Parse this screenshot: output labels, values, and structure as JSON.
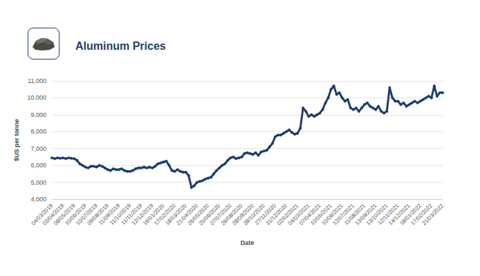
{
  "chart_data": {
    "type": "line",
    "title": "Aluminum Prices",
    "x_label": "Date",
    "y_label": "$US per tonne",
    "categories": [
      "04/03/2019",
      null,
      null,
      null,
      "03/04/2019",
      null,
      null,
      null,
      "08/05/2019",
      null,
      null,
      null,
      "10/06/2019",
      null,
      null,
      null,
      "10/07/2019",
      null,
      null,
      null,
      "09/08/2019",
      null,
      null,
      null,
      "11/09/2019",
      null,
      null,
      null,
      "11/10/2019",
      null,
      null,
      null,
      "11/11/2019",
      null,
      null,
      null,
      "12/12/2019",
      null,
      null,
      null,
      "16/01/2020",
      null,
      null,
      null,
      "17/02/2020",
      null,
      null,
      null,
      "18/03/2020",
      null,
      null,
      null,
      "21/04/2020",
      null,
      null,
      null,
      "26/05/2020",
      null,
      null,
      null,
      "25/06/2020",
      null,
      null,
      null,
      "27/07/2020",
      null,
      null,
      null,
      "26/08/2020",
      null,
      null,
      null,
      "28/09/2020",
      null,
      null,
      null,
      "28/10/2020",
      null,
      null,
      null,
      "27/11/2020",
      null,
      null,
      null,
      "31/12/2020",
      null,
      null,
      null,
      "02/02/2021",
      null,
      null,
      null,
      "04/03/2021",
      null,
      null,
      null,
      "07/04/2021",
      null,
      null,
      null,
      "10/05/2021",
      null,
      null,
      null,
      "10/06/2021",
      null,
      null,
      null,
      "12/07/2021",
      null,
      null,
      null,
      "11/08/2021",
      null,
      null,
      null,
      "13/09/2021",
      null,
      null,
      null,
      "13/10/2021",
      null,
      null,
      null,
      "12/11/2021",
      null,
      null,
      null,
      "14/12/2021",
      null,
      null,
      null,
      "18/01/2022",
      null,
      null,
      null,
      "17/02/2022",
      null,
      null,
      null,
      "21/03/2022"
    ],
    "values": [
      6450,
      6400,
      6450,
      6420,
      6450,
      6400,
      6450,
      6420,
      6400,
      6300,
      6100,
      6000,
      5900,
      5850,
      5950,
      5950,
      5900,
      6000,
      5950,
      5850,
      5750,
      5700,
      5800,
      5750,
      5750,
      5800,
      5700,
      5650,
      5650,
      5700,
      5800,
      5850,
      5850,
      5900,
      5850,
      5900,
      5850,
      5950,
      6100,
      6150,
      6200,
      6250,
      6000,
      5700,
      5650,
      5750,
      5650,
      5600,
      5600,
      5400,
      4700,
      4800,
      5000,
      5050,
      5100,
      5200,
      5250,
      5300,
      5500,
      5700,
      5850,
      6000,
      6100,
      6300,
      6450,
      6500,
      6400,
      6450,
      6500,
      6700,
      6750,
      6700,
      6650,
      6750,
      6600,
      6800,
      6850,
      6900,
      7100,
      7300,
      7700,
      7800,
      7800,
      7900,
      8000,
      8100,
      7950,
      7850,
      7900,
      8200,
      9400,
      9200,
      8900,
      9000,
      8900,
      9000,
      9100,
      9300,
      9700,
      10000,
      10500,
      10700,
      10200,
      10300,
      10000,
      9800,
      9900,
      9400,
      9300,
      9400,
      9200,
      9400,
      9600,
      9700,
      9500,
      9400,
      9300,
      9500,
      9200,
      9100,
      9200,
      10600,
      10000,
      9800,
      9800,
      9600,
      9700,
      9500,
      9600,
      9700,
      9800,
      9700,
      9800,
      9900,
      10000,
      10100,
      10000,
      10700,
      10100,
      10300,
      10300
    ],
    "color": "#1f3d6b",
    "marker": "circle",
    "ylim": [
      4000,
      11000
    ],
    "yticks": [
      {
        "value": 4000,
        "label": "4,000"
      },
      {
        "value": 5000,
        "label": "5,000"
      },
      {
        "value": 6000,
        "label": "6,000"
      },
      {
        "value": 7000,
        "label": "7,000"
      },
      {
        "value": 8000,
        "label": "8,000"
      },
      {
        "value": 9000,
        "label": "9,000"
      },
      {
        "value": 10000,
        "label": "10,000"
      },
      {
        "value": 11000,
        "label": "11,000"
      }
    ],
    "grid": true
  }
}
